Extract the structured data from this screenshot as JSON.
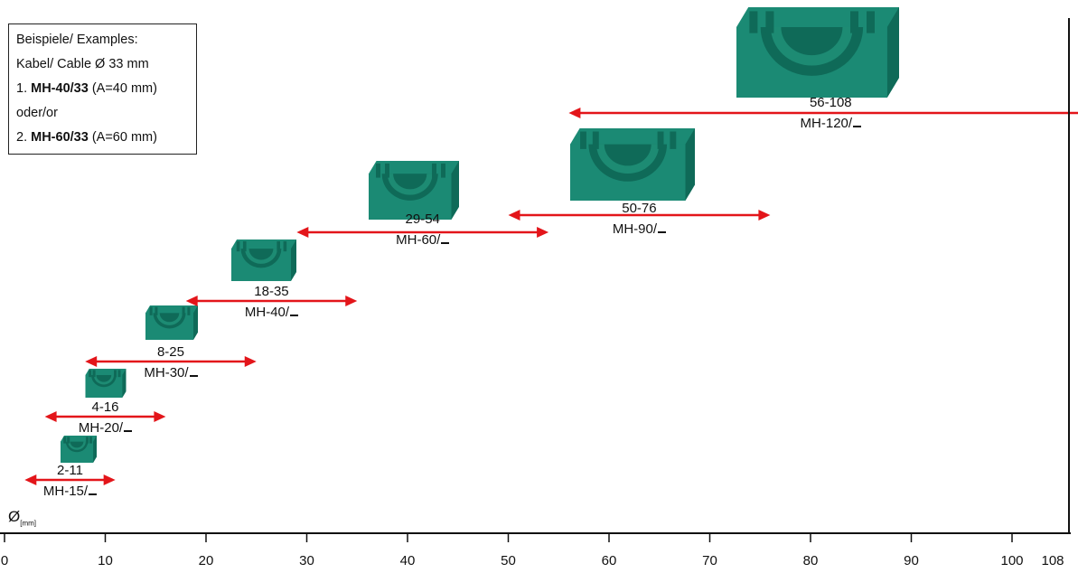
{
  "example_box": {
    "line1": "Beispiele/ Examples:",
    "line2": "Kabel/ Cable  Ø 33 mm",
    "line3_prefix": "1. ",
    "line3_bold": "MH-40/33",
    "line3_suffix": " (A=40 mm)",
    "line4": "oder/or",
    "line5_prefix": "2. ",
    "line5_bold": "MH-60/33",
    "line5_suffix": " (A=60 mm)"
  },
  "axis": {
    "symbol": "Ø",
    "unit": "[mm]",
    "ticks": [
      "0",
      "10",
      "20",
      "30",
      "40",
      "50",
      "60",
      "70",
      "80",
      "90",
      "100",
      "108"
    ]
  },
  "colors": {
    "arrow": "#e3151a",
    "block": "#1b8a74",
    "block_dark": "#0f6a58",
    "block_light": "#2aa58a",
    "axis": "#111111"
  },
  "ranges": [
    {
      "range": "2-11",
      "model": "MH-15/",
      "min": 2,
      "max": 11
    },
    {
      "range": "4-16",
      "model": "MH-20/",
      "min": 4,
      "max": 16
    },
    {
      "range": "8-25",
      "model": "MH-30/",
      "min": 8,
      "max": 25
    },
    {
      "range": "18-35",
      "model": "MH-40/",
      "min": 18,
      "max": 35
    },
    {
      "range": "29-54",
      "model": "MH-60/",
      "min": 29,
      "max": 54
    },
    {
      "range": "50-76",
      "model": "MH-90/",
      "min": 50,
      "max": 76
    },
    {
      "range": "56-108",
      "model": "MH-120/",
      "min": 56,
      "max": 108
    }
  ]
}
